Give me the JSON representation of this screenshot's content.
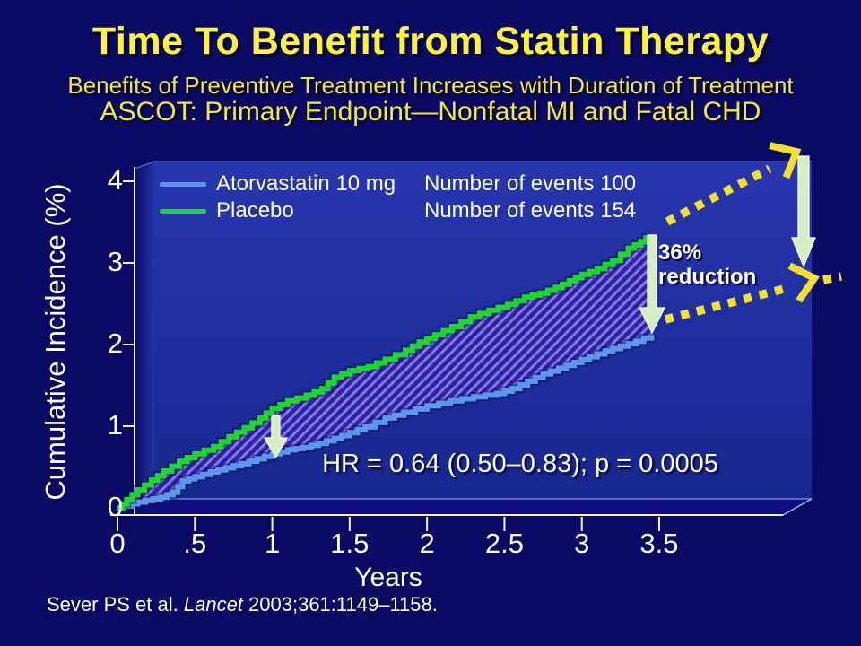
{
  "slide": {
    "title": "Time To Benefit from Statin Therapy",
    "subtitle1": "Benefits of Preventive Treatment Increases with Duration of Treatment",
    "subtitle2": "ASCOT: Primary Endpoint—Nonfatal MI and Fatal CHD",
    "citation": {
      "pre": "Sever PS et al. ",
      "journal": "Lancet",
      "post": " 2003;361:1149–1158."
    }
  },
  "chart_data": {
    "type": "line",
    "step": true,
    "title": "ASCOT: Primary Endpoint—Nonfatal MI and Fatal CHD",
    "xlabel": "Years",
    "ylabel": "Cumulative Incidence (%)",
    "xlim": [
      0,
      3.5
    ],
    "ylim": [
      0,
      4
    ],
    "grid": false,
    "legend_position": "top-left",
    "x_ticks": {
      "values": [
        0,
        0.5,
        1,
        1.5,
        2,
        2.5,
        3,
        3.5
      ],
      "labels": [
        "0",
        ".5",
        "1",
        "1.5",
        "2",
        "2.5",
        "3",
        "3.5"
      ]
    },
    "y_ticks": {
      "values": [
        0,
        1,
        2,
        3,
        4
      ],
      "labels": [
        "0",
        "1",
        "2",
        "3",
        "4"
      ]
    },
    "hr_label": "HR = 0.64 (0.50–0.83); p = 0.0005",
    "reduction_label": {
      "line1": "36%",
      "line2": "reduction"
    },
    "series": [
      {
        "name": "Atorvastatin 10 mg",
        "events_label": "Number of events 100",
        "color": "#5B97EC",
        "final_value_pct": 2.1,
        "points": [
          [
            0,
            0
          ],
          [
            0.08,
            0.05
          ],
          [
            0.18,
            0.09
          ],
          [
            0.28,
            0.13
          ],
          [
            0.36,
            0.19
          ],
          [
            0.42,
            0.33
          ],
          [
            0.5,
            0.38
          ],
          [
            0.6,
            0.44
          ],
          [
            0.7,
            0.49
          ],
          [
            0.8,
            0.54
          ],
          [
            0.9,
            0.6
          ],
          [
            1.0,
            0.66
          ],
          [
            1.1,
            0.71
          ],
          [
            1.2,
            0.74
          ],
          [
            1.3,
            0.79
          ],
          [
            1.4,
            0.85
          ],
          [
            1.5,
            0.92
          ],
          [
            1.6,
            0.99
          ],
          [
            1.73,
            1.1
          ],
          [
            1.85,
            1.17
          ],
          [
            2.0,
            1.25
          ],
          [
            2.15,
            1.31
          ],
          [
            2.3,
            1.36
          ],
          [
            2.45,
            1.4
          ],
          [
            2.55,
            1.46
          ],
          [
            2.65,
            1.55
          ],
          [
            2.75,
            1.64
          ],
          [
            2.85,
            1.71
          ],
          [
            2.95,
            1.78
          ],
          [
            3.05,
            1.85
          ],
          [
            3.15,
            1.92
          ],
          [
            3.25,
            1.98
          ],
          [
            3.35,
            2.04
          ],
          [
            3.45,
            2.12
          ]
        ]
      },
      {
        "name": "Placebo",
        "events_label": "Number of events 154",
        "color": "#1ED72E",
        "final_value_pct": 3.35,
        "points": [
          [
            0,
            0
          ],
          [
            0.06,
            0.1
          ],
          [
            0.13,
            0.22
          ],
          [
            0.22,
            0.34
          ],
          [
            0.3,
            0.45
          ],
          [
            0.4,
            0.57
          ],
          [
            0.5,
            0.66
          ],
          [
            0.62,
            0.75
          ],
          [
            0.72,
            0.87
          ],
          [
            0.82,
            0.98
          ],
          [
            0.92,
            1.1
          ],
          [
            1.0,
            1.22
          ],
          [
            1.1,
            1.31
          ],
          [
            1.22,
            1.38
          ],
          [
            1.32,
            1.46
          ],
          [
            1.4,
            1.6
          ],
          [
            1.5,
            1.68
          ],
          [
            1.62,
            1.73
          ],
          [
            1.73,
            1.82
          ],
          [
            1.86,
            1.93
          ],
          [
            1.95,
            2.03
          ],
          [
            2.05,
            2.12
          ],
          [
            2.16,
            2.22
          ],
          [
            2.28,
            2.34
          ],
          [
            2.4,
            2.42
          ],
          [
            2.52,
            2.49
          ],
          [
            2.63,
            2.58
          ],
          [
            2.73,
            2.63
          ],
          [
            2.83,
            2.7
          ],
          [
            2.92,
            2.78
          ],
          [
            3.0,
            2.86
          ],
          [
            3.1,
            2.93
          ],
          [
            3.2,
            3.03
          ],
          [
            3.3,
            3.18
          ],
          [
            3.38,
            3.26
          ],
          [
            3.45,
            3.35
          ]
        ]
      }
    ],
    "colors": {
      "accent_yellow": "#F2DF2E",
      "arrow_green": "#D7EDC3",
      "hatch_base": "#2B23A2",
      "hatch_stripe": "#8A7AE8",
      "atorvastatin_blue": "#5B97EC",
      "placebo_green": "#1ED72E",
      "panel_blue": "#2233A6",
      "background_navy": "#0A0A64"
    }
  }
}
